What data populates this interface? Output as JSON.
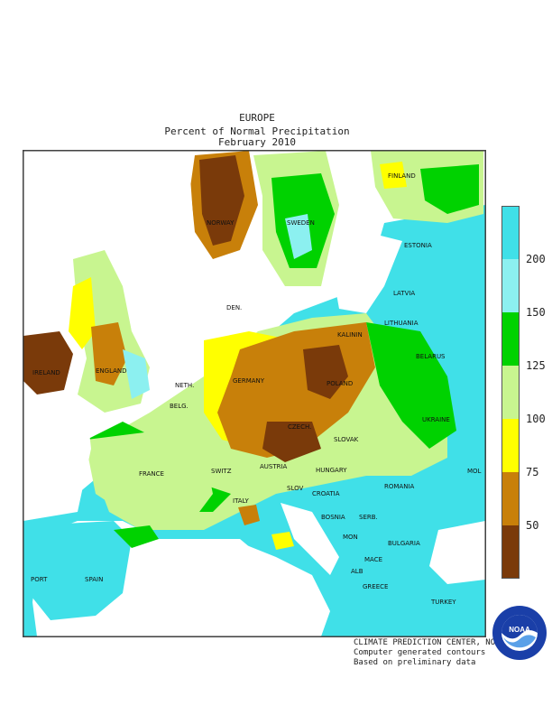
{
  "header": {
    "region": "EUROPE",
    "subtitle": "Percent of Normal Precipitation",
    "period": "February 2010"
  },
  "legend": {
    "levels": [
      50,
      75,
      100,
      125,
      150,
      200
    ],
    "labels": [
      "50",
      "75",
      "100",
      "125",
      "150",
      "200"
    ],
    "colors": [
      "#7a3a0a",
      "#c8800a",
      "#ffff00",
      "#c8f590",
      "#00d200",
      "#8cf0f0",
      "#40e0e8"
    ]
  },
  "countries": {
    "ireland": "IRELAND",
    "england": "ENGLAND",
    "norway": "NORWAY",
    "sweden": "SWEDEN",
    "finland": "FINLAND",
    "estonia": "ESTONIA",
    "latvia": "LATVIA",
    "lithuania": "LITHUANIA",
    "kalinin": "KALININ",
    "belarus": "BELARUS",
    "denmark": "DEN.",
    "netherlands": "NETH.",
    "belgium": "BELG.",
    "germany": "GERMANY",
    "poland": "POLAND",
    "czech": "CZECH.",
    "slovak": "SLOVAK",
    "ukraine": "UKRAINE",
    "moldova": "MOL",
    "france": "FRANCE",
    "switzerland": "SWITZ",
    "austria": "AUSTRIA",
    "hungary": "HUNGARY",
    "romania": "ROMANIA",
    "slovenia": "SLOV",
    "croatia": "CROATIA",
    "bosnia": "BOSNIA",
    "serbia": "SERB.",
    "montenegro": "MON",
    "bulgaria": "BULGARIA",
    "macedonia": "MACE",
    "albania": "ALB",
    "greece": "GREECE",
    "turkey": "TURKEY",
    "italy": "ITALY",
    "spain": "SPAIN",
    "portugal": "PORT"
  },
  "credits": {
    "line1": "CLIMATE PREDICTION CENTER, NOAA",
    "line2": "Computer generated contours",
    "line3": "Based on preliminary data"
  },
  "logo": {
    "text": "NOAA",
    "icon": "noaa-logo-icon"
  }
}
